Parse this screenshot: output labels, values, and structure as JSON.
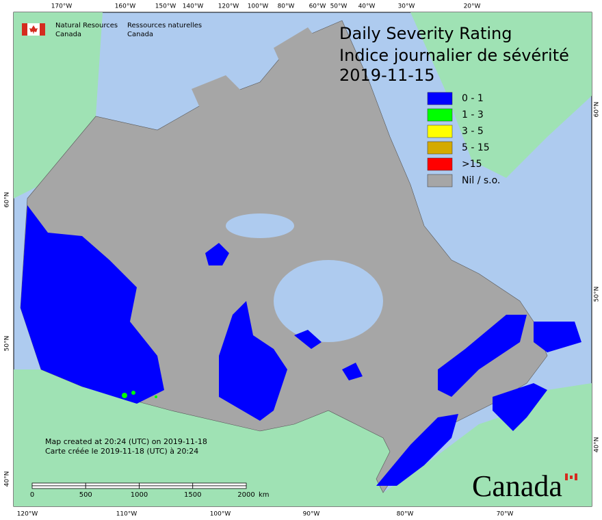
{
  "map": {
    "top_longitudes": [
      "170°W",
      "160°W",
      "150°W",
      "140°W",
      "120°W",
      "100°W",
      "80°W",
      "60°W",
      "50°W",
      "40°W",
      "30°W",
      "20°W"
    ],
    "bottom_longitudes": [
      "120°W",
      "110°W",
      "100°W",
      "90°W",
      "80°W",
      "70°W"
    ],
    "left_latitudes": [
      "60°N",
      "50°N",
      "40°N"
    ],
    "right_latitudes": [
      "60°N",
      "50°N",
      "40°N"
    ],
    "agency_en": [
      "Natural Resources",
      "Canada"
    ],
    "agency_fr": [
      "Ressources naturelles",
      "Canada"
    ],
    "title": "Daily Severity Rating",
    "title_fr": "Indice journalier de sévérité",
    "date": "2019-11-15",
    "legend": [
      {
        "label": "0 - 1",
        "color": "#0000ff"
      },
      {
        "label": "1 - 3",
        "color": "#00ff00"
      },
      {
        "label": "3 - 5",
        "color": "#ffff00"
      },
      {
        "label": "5 - 15",
        "color": "#d4aa00"
      },
      {
        "label": ">15",
        "color": "#ff0000"
      },
      {
        "label": "Nil / s.o.",
        "color": "#a6a6a6"
      }
    ],
    "note_en": "Map created at 20:24 (UTC) on 2019-11-18",
    "note_fr": "Carte créée le 2019-11-18 (UTC) à 20:24",
    "scale_ticks": [
      0,
      500,
      1000,
      1500,
      2000
    ],
    "scale_unit": "km",
    "wordmark": "Canada"
  }
}
